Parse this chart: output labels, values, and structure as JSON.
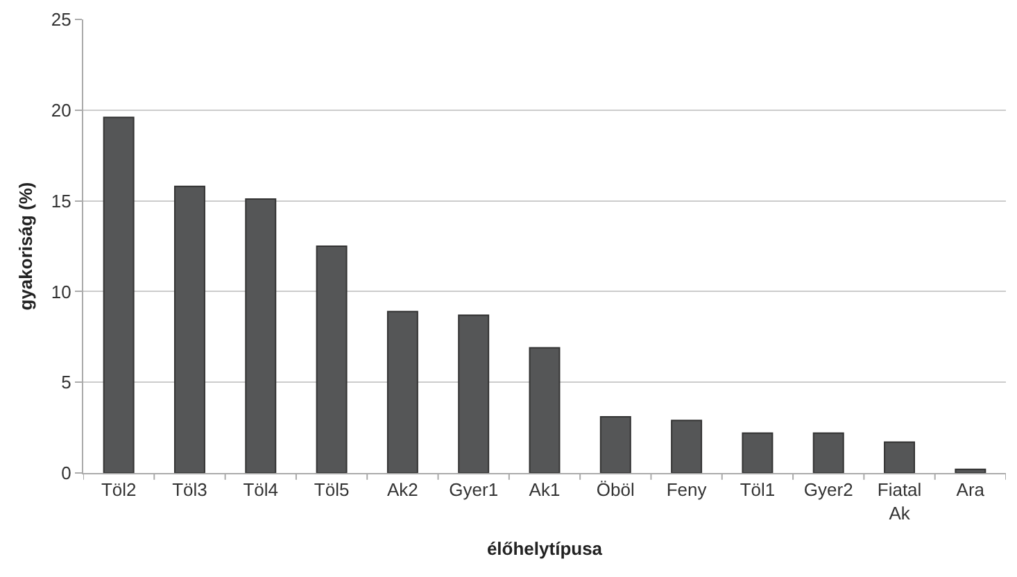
{
  "chart_data": {
    "type": "bar",
    "xlabel": "élőhelytípusa",
    "ylabel": "gyakoriság (%)",
    "categories": [
      "Töl2",
      "Töl3",
      "Töl4",
      "Töl5",
      "Ak2",
      "Gyer1",
      "Ak1",
      "Öböl",
      "Feny",
      "Töl1",
      "Gyer2",
      "Fiatal Ak",
      "Ara"
    ],
    "values": [
      19.6,
      15.8,
      15.1,
      12.5,
      8.9,
      8.7,
      6.9,
      3.1,
      2.9,
      2.2,
      2.2,
      1.7,
      0.2
    ],
    "color": "#555657",
    "ylim": [
      0,
      25
    ],
    "yticks": [
      0,
      5,
      10,
      15,
      20,
      25
    ],
    "grid": "y"
  }
}
